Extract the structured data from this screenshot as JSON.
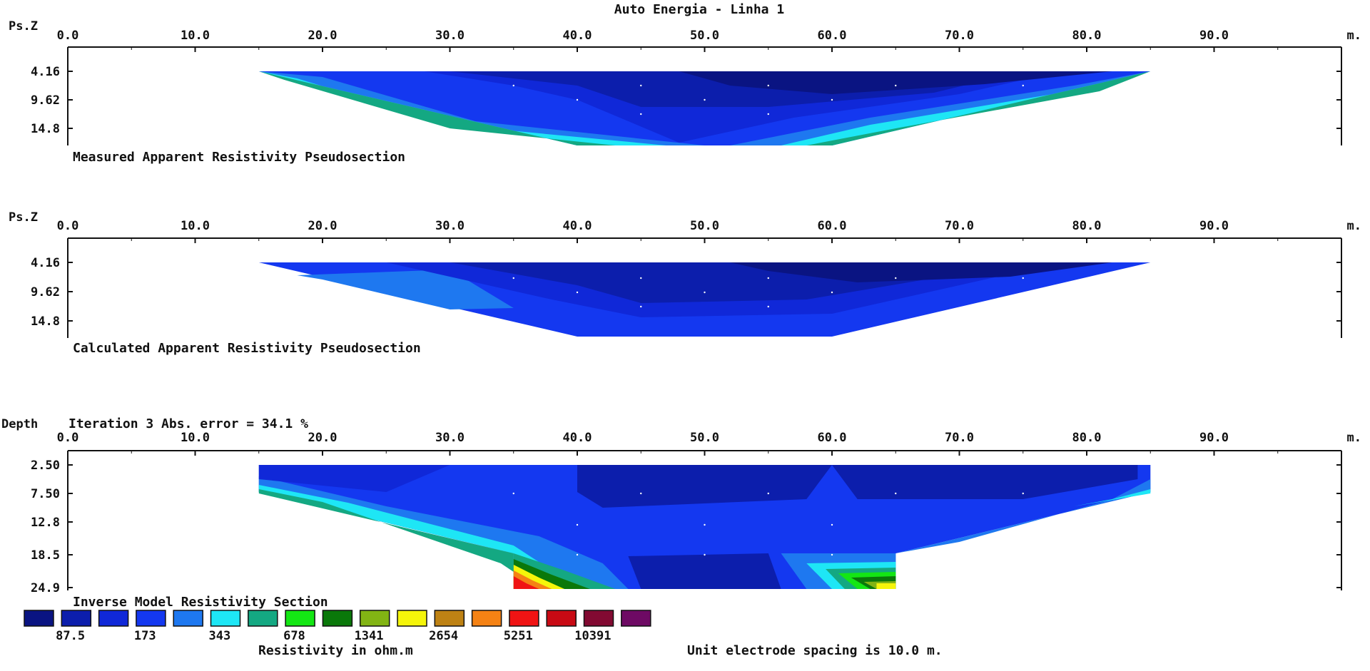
{
  "chart_data": {
    "type": "heatmap",
    "title": "Auto Energia - Linha 1",
    "x_axis": {
      "ticks": [
        "0.0",
        "10.0",
        "20.0",
        "30.0",
        "40.0",
        "50.0",
        "60.0",
        "70.0",
        "80.0",
        "90.0"
      ],
      "range": [
        0,
        100
      ],
      "unit_label": "m."
    },
    "panels": [
      {
        "id": "measured",
        "caption": "Measured Apparent Resistivity Pseudosection",
        "y_label": "Ps.Z",
        "y_ticks": [
          "4.16",
          "9.62",
          "14.8"
        ],
        "extent_x": [
          15,
          85
        ],
        "depths": [
          4.16,
          9.62,
          14.8
        ],
        "layers": [
          {
            "color_index": 3,
            "top": [
              [
                15,
                4.16
              ],
              [
                85,
                4.16
              ]
            ],
            "bottom": [
              [
                15,
                4.16
              ],
              [
                40,
                14.8
              ],
              [
                60,
                14.8
              ],
              [
                85,
                4.16
              ]
            ]
          },
          {
            "color_index": 1,
            "polygon": [
              [
                30,
                4.16
              ],
              [
                75,
                4.16
              ],
              [
                70,
                7.2
              ],
              [
                60,
                9.62
              ],
              [
                50,
                11.5
              ],
              [
                40,
                7.5
              ]
            ]
          },
          {
            "color_index": 0,
            "polygon": [
              [
                50,
                4.16
              ],
              [
                80,
                4.16
              ],
              [
                70,
                6.5
              ],
              [
                60,
                7.5
              ],
              [
                52,
                6
              ]
            ]
          },
          {
            "color_index": 4,
            "band": "lower-flank"
          },
          {
            "color_index": 5,
            "band": "lower-flank-2"
          },
          {
            "color_index": 6,
            "band": "lower-flank-3"
          }
        ]
      },
      {
        "id": "calculated",
        "caption": "Calculated Apparent Resistivity Pseudosection",
        "y_label": "Ps.Z",
        "y_ticks": [
          "4.16",
          "9.62",
          "14.8"
        ]
      },
      {
        "id": "model",
        "caption": "Inverse Model Resistivity Section",
        "y_label": "Depth",
        "iteration_text": "Iteration 3 Abs. error = 34.1 %",
        "y_ticks": [
          "2.50",
          "7.50",
          "12.8",
          "18.5",
          "24.9"
        ]
      }
    ],
    "color_scale": {
      "colors": [
        "#0a1482",
        "#0c1eac",
        "#1028d8",
        "#1438f0",
        "#1e78f0",
        "#1ee6f5",
        "#14a882",
        "#14e614",
        "#0a780a",
        "#82b414",
        "#f5f50a",
        "#be8214",
        "#f58214",
        "#f01414",
        "#c80a14",
        "#820a32",
        "#6e0a64"
      ],
      "labels": [
        "87.5",
        "173",
        "343",
        "678",
        "1341",
        "2654",
        "5251",
        "10391"
      ],
      "unit_label": "Resistivity in ohm.m"
    },
    "footer_note": "Unit electrode spacing is 10.0 m."
  }
}
